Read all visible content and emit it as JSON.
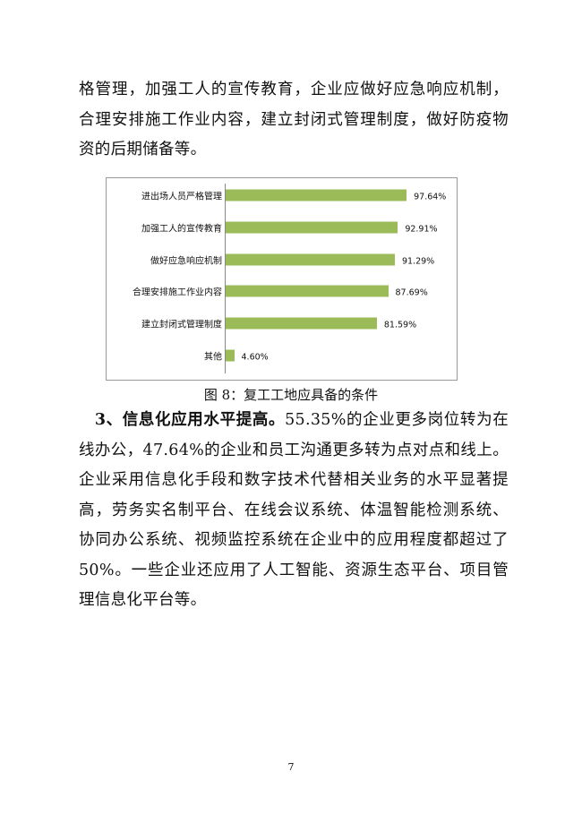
{
  "paragraph1": "格管理，加强工人的宣传教育，企业应做好应急响应机制，合理安排施工作业内容，建立封闭式管理制度，做好防疫物资的后期储备等。",
  "chart_data": {
    "type": "bar",
    "orientation": "horizontal",
    "categories": [
      "进出场人员严格管理",
      "加强工人的宣传教育",
      "做好应急响应机制",
      "合理安排施工作业内容",
      "建立封闭式管理制度",
      "其他"
    ],
    "values": [
      97.64,
      92.91,
      91.29,
      87.69,
      81.59,
      4.6
    ],
    "labels": [
      "97.64%",
      "92.91%",
      "91.29%",
      "87.69%",
      "81.59%",
      "4.60%"
    ],
    "xlim": [
      0,
      100
    ],
    "bar_color": "#9bbb59",
    "grid": false
  },
  "caption": "图 8：复工工地应具备的条件",
  "paragraph2": {
    "lead": "3、信息化应用水平提高。",
    "body": "55.35%的企业更多岗位转为在线办公，47.64%的企业和员工沟通更多转为点对点和线上。企业采用信息化手段和数字技术代替相关业务的水平显著提高，劳务实名制平台、在线会议系统、体温智能检测系统、协同办公系统、视频监控系统在企业中的应用程度都超过了 50%。一些企业还应用了人工智能、资源生态平台、项目管理信息化平台等。"
  },
  "page_number": "7"
}
